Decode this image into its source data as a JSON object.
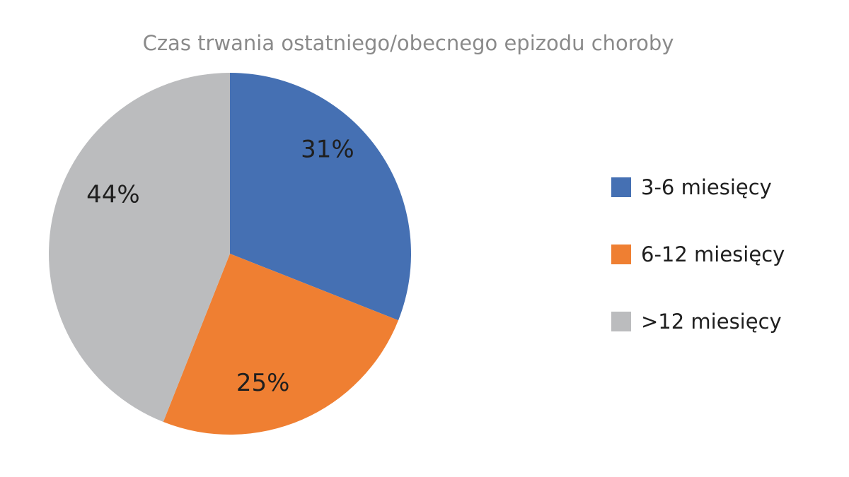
{
  "chart_data": {
    "type": "pie",
    "title": "Czas trwania ostatniego/obecnego epizodu choroby",
    "slices": [
      {
        "label": "3-6 miesięcy",
        "value": 31,
        "display": "31%",
        "color": "#4570b3"
      },
      {
        "label": "6-12 miesięcy",
        "value": 25,
        "display": "25%",
        "color": "#ef7f32"
      },
      {
        "label": ">12 miesięcy",
        "value": 44,
        "display": "44%",
        "color": "#bbbcbe"
      }
    ],
    "start_angle_deg": 0,
    "direction": "clockwise",
    "legend_position": "right"
  }
}
